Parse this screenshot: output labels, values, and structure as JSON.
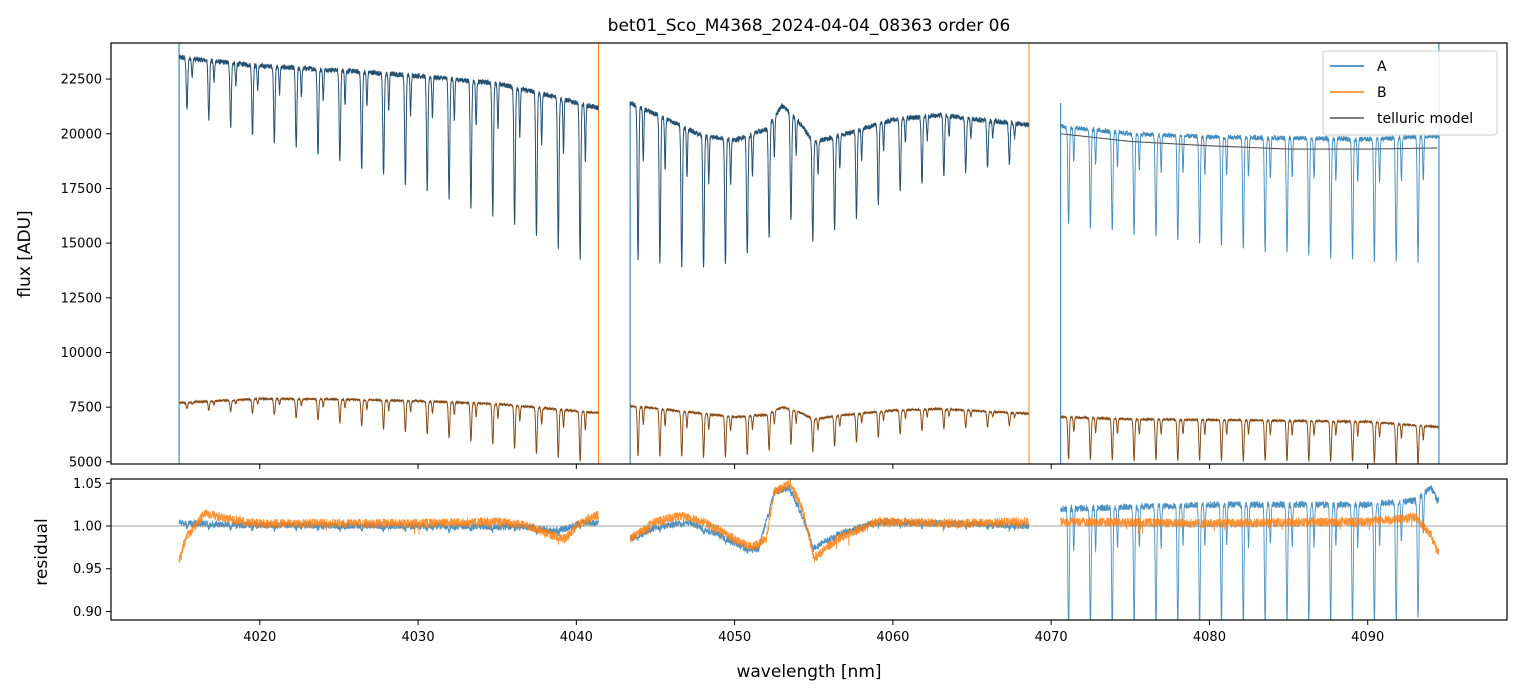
{
  "chart_data": {
    "type": "line",
    "title": "bet01_Sco_M4368_2024-04-04_08363  order 06",
    "xlabel": "wavelength [nm]",
    "xlim": [
      4010.6,
      4098.8
    ],
    "x_ticks": [
      4020,
      4030,
      4040,
      4050,
      4060,
      4070,
      4080,
      4090
    ],
    "x_tick_labels": [
      "4020",
      "4030",
      "4040",
      "4050",
      "4060",
      "4070",
      "4080",
      "4090"
    ],
    "colors": {
      "A": "#1f77b4",
      "B": "#ff7f0e",
      "telluric": "#555555",
      "telluric_on_A": "#1d3a52",
      "telluric_on_B": "#5c3a1c"
    },
    "segments": [
      [
        4014.9,
        4041.4
      ],
      [
        4043.4,
        4068.6
      ],
      [
        4070.6,
        4094.5
      ]
    ],
    "line_spacing_nm": 1.38,
    "panels": [
      {
        "name": "flux",
        "ylabel": "flux [ADU]",
        "ylim": [
          4900,
          24150
        ],
        "y_ticks": [
          5000,
          7500,
          10000,
          12500,
          15000,
          17500,
          20000,
          22500
        ],
        "y_tick_labels": [
          "5000",
          "7500",
          "10000",
          "12500",
          "15000",
          "17500",
          "20000",
          "22500"
        ],
        "legend": {
          "position": "top-right",
          "entries": [
            "A",
            "B",
            "telluric model"
          ]
        },
        "series": [
          {
            "name": "A",
            "segments": [
              {
                "continuum": [
                  [
                    4014.9,
                    23500
                  ],
                  [
                    4016,
                    23400
                  ],
                  [
                    4020,
                    23100
                  ],
                  [
                    4025,
                    22900
                  ],
                  [
                    4030,
                    22650
                  ],
                  [
                    4035,
                    22300
                  ],
                  [
                    4038,
                    21800
                  ],
                  [
                    4041.2,
                    21200
                  ]
                ],
                "line_depth_start": 2300,
                "line_depth_end": 7300
              },
              {
                "continuum": [
                  [
                    4043.4,
                    21400
                  ],
                  [
                    4045,
                    20900
                  ],
                  [
                    4048,
                    19900
                  ],
                  [
                    4050,
                    19700
                  ],
                  [
                    4052,
                    20200
                  ],
                  [
                    4053,
                    21300
                  ],
                  [
                    4054,
                    20600
                  ],
                  [
                    4055,
                    19600
                  ],
                  [
                    4057,
                    20000
                  ],
                  [
                    4060,
                    20650
                  ],
                  [
                    4063,
                    20850
                  ],
                  [
                    4066,
                    20600
                  ],
                  [
                    4068.6,
                    20400
                  ]
                ],
                "line_depth_start": 7100,
                "line_depth_end": 1600
              },
              {
                "continuum": [
                  [
                    4070.6,
                    20350
                  ],
                  [
                    4075,
                    20000
                  ],
                  [
                    4080,
                    19850
                  ],
                  [
                    4085,
                    19800
                  ],
                  [
                    4090,
                    19750
                  ],
                  [
                    4094.4,
                    19900
                  ]
                ],
                "line_depth_start": 4400,
                "line_depth_end": 5800
              }
            ]
          },
          {
            "name": "B",
            "segments": [
              {
                "continuum": [
                  [
                    4014.9,
                    7700
                  ],
                  [
                    4020,
                    7880
                  ],
                  [
                    4025,
                    7860
                  ],
                  [
                    4030,
                    7780
                  ],
                  [
                    4035,
                    7650
                  ],
                  [
                    4038,
                    7450
                  ],
                  [
                    4041.2,
                    7250
                  ]
                ],
                "line_depth_start": 250,
                "line_depth_end": 2400
              },
              {
                "continuum": [
                  [
                    4043.4,
                    7550
                  ],
                  [
                    4045,
                    7450
                  ],
                  [
                    4048,
                    7200
                  ],
                  [
                    4050,
                    7050
                  ],
                  [
                    4052,
                    7150
                  ],
                  [
                    4053,
                    7500
                  ],
                  [
                    4054,
                    7300
                  ],
                  [
                    4055,
                    6950
                  ],
                  [
                    4057,
                    7150
                  ],
                  [
                    4060,
                    7350
                  ],
                  [
                    4063,
                    7420
                  ],
                  [
                    4066,
                    7300
                  ],
                  [
                    4068.6,
                    7200
                  ]
                ],
                "line_depth_start": 2300,
                "line_depth_end": 500
              },
              {
                "continuum": [
                  [
                    4070.6,
                    7050
                  ],
                  [
                    4075,
                    6950
                  ],
                  [
                    4080,
                    6920
                  ],
                  [
                    4085,
                    6880
                  ],
                  [
                    4090,
                    6830
                  ],
                  [
                    4094.4,
                    6600
                  ]
                ],
                "line_depth_start": 1900,
                "line_depth_end": 1800
              }
            ]
          },
          {
            "name": "telluric model",
            "continuum_A3": [
              [
                4070.6,
                20000
              ],
              [
                4075,
                19650
              ],
              [
                4080,
                19450
              ],
              [
                4085,
                19300
              ],
              [
                4090,
                19300
              ],
              [
                4094.4,
                19350
              ]
            ]
          }
        ]
      },
      {
        "name": "residual",
        "ylabel": "residual",
        "ylim": [
          0.89,
          1.055
        ],
        "y_ticks": [
          0.9,
          0.95,
          1.0,
          1.05
        ],
        "y_tick_labels": [
          "0.90",
          "0.95",
          "1.00",
          "1.05"
        ],
        "reference_line": 1.0,
        "series": [
          {
            "name": "A",
            "segments": [
              {
                "trend": [
                  [
                    4014.9,
                    1.004
                  ],
                  [
                    4016,
                    1.003
                  ],
                  [
                    4020,
                    1.001
                  ],
                  [
                    4030,
                    1.0
                  ],
                  [
                    4037,
                    0.999
                  ],
                  [
                    4038.5,
                    0.994
                  ],
                  [
                    4039.5,
                    0.998
                  ],
                  [
                    4040.5,
                    1.005
                  ],
                  [
                    4041.2,
                    1.003
                  ]
                ]
              },
              {
                "trend": [
                  [
                    4043.4,
                    0.985
                  ],
                  [
                    4045,
                    0.998
                  ],
                  [
                    4047,
                    1.005
                  ],
                  [
                    4049,
                    0.99
                  ],
                  [
                    4050.5,
                    0.975
                  ],
                  [
                    4051.5,
                    0.972
                  ],
                  [
                    4052.5,
                    1.04
                  ],
                  [
                    4053.5,
                    1.045
                  ],
                  [
                    4054.3,
                    1.01
                  ],
                  [
                    4055,
                    0.975
                  ],
                  [
                    4056.5,
                    0.99
                  ],
                  [
                    4059,
                    1.005
                  ],
                  [
                    4064,
                    1.003
                  ],
                  [
                    4068.6,
                    1.0
                  ]
                ]
              },
              {
                "trend": [
                  [
                    4070.6,
                    1.02
                  ],
                  [
                    4080,
                    1.025
                  ],
                  [
                    4090,
                    1.025
                  ],
                  [
                    4093,
                    1.03
                  ],
                  [
                    4094,
                    1.045
                  ],
                  [
                    4094.4,
                    1.03
                  ]
                ],
                "line_depth": 0.14
              }
            ]
          },
          {
            "name": "B",
            "segments": [
              {
                "trend": [
                  [
                    4014.9,
                    0.96
                  ],
                  [
                    4015.3,
                    0.985
                  ],
                  [
                    4016.5,
                    1.015
                  ],
                  [
                    4018,
                    1.008
                  ],
                  [
                    4020,
                    1.003
                  ],
                  [
                    4030,
                    1.003
                  ],
                  [
                    4035,
                    1.005
                  ],
                  [
                    4037,
                    1.0
                  ],
                  [
                    4038.3,
                    0.99
                  ],
                  [
                    4039.3,
                    0.985
                  ],
                  [
                    4040,
                    1.0
                  ],
                  [
                    4041.2,
                    1.012
                  ]
                ]
              },
              {
                "trend": [
                  [
                    4043.4,
                    0.985
                  ],
                  [
                    4045,
                    1.005
                  ],
                  [
                    4046.5,
                    1.012
                  ],
                  [
                    4048,
                    1.005
                  ],
                  [
                    4049.5,
                    0.99
                  ],
                  [
                    4051,
                    0.975
                  ],
                  [
                    4052,
                    0.985
                  ],
                  [
                    4052.5,
                    1.04
                  ],
                  [
                    4053.5,
                    1.05
                  ],
                  [
                    4054.3,
                    1.02
                  ],
                  [
                    4055,
                    0.962
                  ],
                  [
                    4056.5,
                    0.985
                  ],
                  [
                    4059,
                    1.005
                  ],
                  [
                    4064,
                    1.003
                  ],
                  [
                    4068.6,
                    1.005
                  ]
                ]
              },
              {
                "trend": [
                  [
                    4070.6,
                    1.005
                  ],
                  [
                    4080,
                    1.003
                  ],
                  [
                    4090,
                    1.005
                  ],
                  [
                    4093,
                    1.01
                  ],
                  [
                    4094,
                    0.99
                  ],
                  [
                    4094.4,
                    0.97
                  ]
                ]
              }
            ]
          }
        ]
      }
    ]
  }
}
